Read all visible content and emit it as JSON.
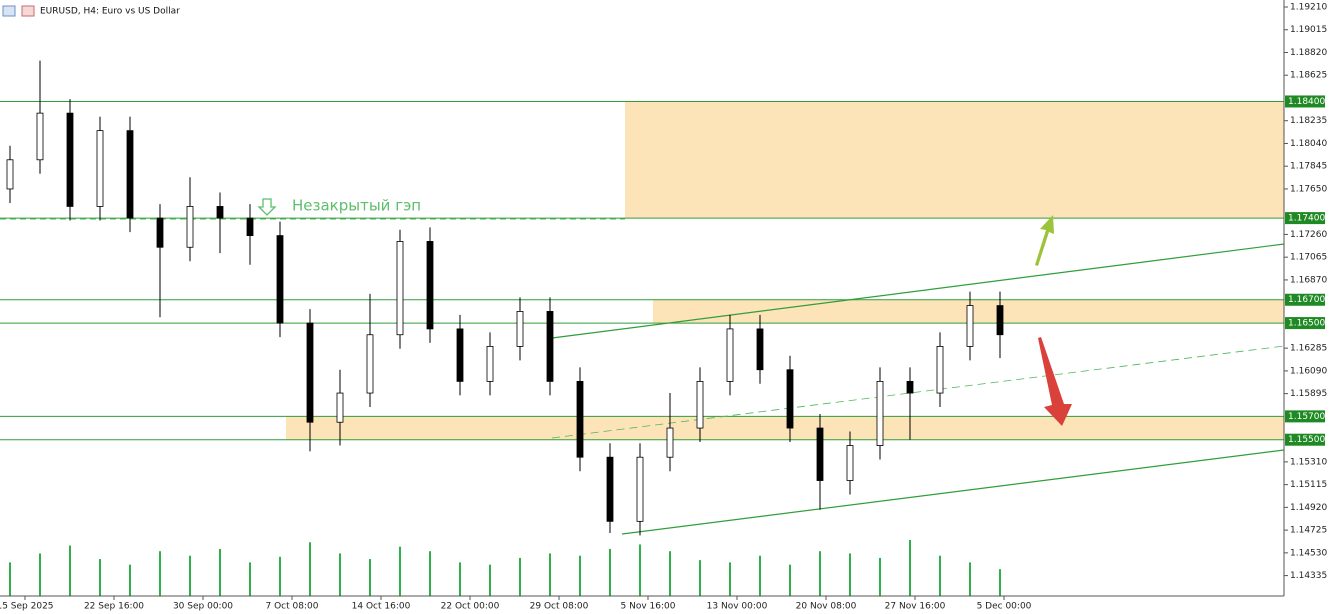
{
  "chart_data": {
    "type": "candlestick",
    "title": "EURUSD, H4:  Euro vs US Dollar",
    "annotation": "Незакрытый гэп",
    "x_labels": [
      "15 Sep 2025",
      "22 Sep 16:00",
      "30 Sep 00:00",
      "7 Oct 08:00",
      "14 Oct 16:00",
      "22 Oct 00:00",
      "29 Oct 08:00",
      "5 Nov 16:00",
      "13 Nov 00:00",
      "20 Nov 08:00",
      "27 Nov 16:00",
      "5 Dec 00:00"
    ],
    "open": [
      1.1765,
      1.179,
      1.183,
      1.175,
      1.1815,
      1.174,
      1.1715,
      1.175,
      1.174,
      1.1725,
      1.165,
      1.1565,
      1.159,
      1.164,
      1.172,
      1.1645,
      1.16,
      1.163,
      1.166,
      1.16,
      1.1535,
      1.148,
      1.1535,
      1.156,
      1.16,
      1.1645,
      1.161,
      1.156,
      1.1515,
      1.1545,
      1.16,
      1.159,
      1.163,
      1.1665
    ],
    "high": [
      1.1802,
      1.1875,
      1.1842,
      1.1827,
      1.1827,
      1.1752,
      1.1775,
      1.1762,
      1.1752,
      1.1737,
      1.1662,
      1.161,
      1.1675,
      1.173,
      1.1732,
      1.1657,
      1.1642,
      1.1672,
      1.1672,
      1.1612,
      1.1547,
      1.1547,
      1.159,
      1.1612,
      1.1657,
      1.1657,
      1.1622,
      1.1572,
      1.1557,
      1.1612,
      1.1612,
      1.1642,
      1.1677,
      1.1677
    ],
    "low": [
      1.1753,
      1.1778,
      1.1738,
      1.1738,
      1.1728,
      1.1655,
      1.1703,
      1.171,
      1.17,
      1.1638,
      1.154,
      1.1545,
      1.1578,
      1.1628,
      1.1633,
      1.1588,
      1.1588,
      1.1618,
      1.1588,
      1.1523,
      1.147,
      1.1468,
      1.1523,
      1.1548,
      1.1588,
      1.1598,
      1.1548,
      1.149,
      1.1503,
      1.1533,
      1.155,
      1.1578,
      1.1618,
      1.162
    ],
    "close": [
      1.179,
      1.183,
      1.175,
      1.1815,
      1.174,
      1.1715,
      1.175,
      1.174,
      1.1725,
      1.165,
      1.1565,
      1.159,
      1.164,
      1.172,
      1.1645,
      1.16,
      1.163,
      1.166,
      1.16,
      1.1535,
      1.148,
      1.1535,
      1.156,
      1.16,
      1.1645,
      1.161,
      1.156,
      1.1515,
      1.1545,
      1.16,
      1.159,
      1.163,
      1.1665,
      1.164
    ],
    "volume": [
      30,
      38,
      45,
      33,
      28,
      40,
      36,
      42,
      30,
      35,
      48,
      38,
      33,
      44,
      40,
      30,
      28,
      34,
      38,
      36,
      42,
      46,
      40,
      32,
      30,
      36,
      28,
      40,
      38,
      34,
      50,
      36,
      30,
      24
    ],
    "ylim": [
      1.1416,
      1.1927
    ],
    "yticks": [
      {
        "value": 1.1921,
        "label": "1.19210"
      },
      {
        "value": 1.19015,
        "label": "1.19015"
      },
      {
        "value": 1.1882,
        "label": "1.18820"
      },
      {
        "value": 1.18625,
        "label": "1.18625"
      },
      {
        "value": 1.18235,
        "label": "1.18235"
      },
      {
        "value": 1.1804,
        "label": "1.18040"
      },
      {
        "value": 1.17845,
        "label": "1.17845"
      },
      {
        "value": 1.1765,
        "label": "1.17650"
      },
      {
        "value": 1.1726,
        "label": "1.17260"
      },
      {
        "value": 1.17065,
        "label": "1.17065"
      },
      {
        "value": 1.1687,
        "label": "1.16870"
      },
      {
        "value": 1.16285,
        "label": "1.16285"
      },
      {
        "value": 1.1609,
        "label": "1.16090"
      },
      {
        "value": 1.15895,
        "label": "1.15895"
      },
      {
        "value": 1.1531,
        "label": "1.15310"
      },
      {
        "value": 1.15115,
        "label": "1.15115"
      },
      {
        "value": 1.1492,
        "label": "1.14920"
      },
      {
        "value": 1.14725,
        "label": "1.14725"
      },
      {
        "value": 1.1453,
        "label": "1.14530"
      },
      {
        "value": 1.14335,
        "label": "1.14335"
      }
    ],
    "levels": [
      {
        "value": 1.184,
        "label": "1.18400"
      },
      {
        "value": 1.174,
        "label": "1.17400"
      },
      {
        "value": 1.167,
        "label": "1.16700"
      },
      {
        "value": 1.165,
        "label": "1.16500"
      },
      {
        "value": 1.157,
        "label": "1.15700"
      },
      {
        "value": 1.155,
        "label": "1.15500"
      }
    ],
    "zones": [
      {
        "from": 1.174,
        "to": 1.184
      },
      {
        "from": 1.165,
        "to": 1.167
      },
      {
        "from": 1.155,
        "to": 1.157
      }
    ],
    "level_color": "#2f9e3a",
    "zone_color": "#fde3b8"
  }
}
